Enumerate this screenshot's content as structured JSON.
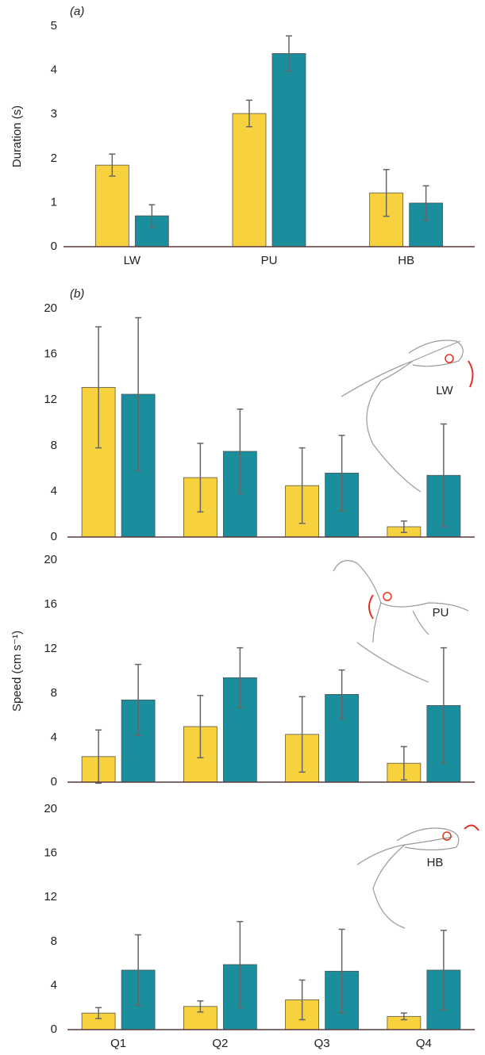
{
  "chart_data": [
    {
      "type": "bar",
      "panel_label": "(a)",
      "y_label": "Duration (s)",
      "categories": [
        "LW",
        "PU",
        "HB"
      ],
      "series": [
        {
          "color": "#f7d23e",
          "values": [
            1.85,
            3.02,
            1.22
          ],
          "errors": [
            0.25,
            0.3,
            0.53
          ]
        },
        {
          "color": "#1a8e9c",
          "values": [
            0.7,
            4.38,
            0.99
          ],
          "errors": [
            0.25,
            0.4,
            0.39
          ]
        }
      ],
      "ylim": [
        0,
        5
      ],
      "yticks": [
        0,
        1,
        2,
        3,
        4,
        5
      ]
    },
    {
      "type": "bar",
      "panel_label": "(b)",
      "annotation": "LW",
      "categories": [
        null,
        null,
        null,
        null
      ],
      "series": [
        {
          "color": "#f7d23e",
          "values": [
            13.1,
            5.2,
            4.5,
            0.9
          ],
          "errors": [
            5.3,
            3.0,
            3.3,
            0.5
          ]
        },
        {
          "color": "#1a8e9c",
          "values": [
            12.5,
            7.5,
            5.6,
            5.4
          ],
          "errors": [
            6.7,
            3.7,
            3.3,
            4.5
          ]
        }
      ],
      "ylim": [
        0,
        20
      ],
      "yticks": [
        0,
        4,
        8,
        12,
        16,
        20
      ]
    },
    {
      "type": "bar",
      "y_label": "Speed (cm s⁻¹)",
      "annotation": "PU",
      "categories": [
        null,
        null,
        null,
        null
      ],
      "series": [
        {
          "color": "#f7d23e",
          "values": [
            2.3,
            5.0,
            4.3,
            1.7
          ],
          "errors": [
            2.4,
            2.8,
            3.4,
            1.5
          ]
        },
        {
          "color": "#1a8e9c",
          "values": [
            7.4,
            9.4,
            7.9,
            6.9
          ],
          "errors": [
            3.2,
            2.7,
            2.2,
            5.2
          ]
        }
      ],
      "ylim": [
        0,
        20
      ],
      "yticks": [
        0,
        4,
        8,
        12,
        16,
        20
      ]
    },
    {
      "type": "bar",
      "annotation": "HB",
      "categories": [
        "Q1",
        "Q2",
        "Q3",
        "Q4"
      ],
      "series": [
        {
          "color": "#f7d23e",
          "values": [
            1.5,
            2.1,
            2.7,
            1.2
          ],
          "errors": [
            0.5,
            0.5,
            1.8,
            0.3
          ]
        },
        {
          "color": "#1a8e9c",
          "values": [
            5.4,
            5.9,
            5.3,
            5.4
          ],
          "errors": [
            3.2,
            3.9,
            3.8,
            3.6
          ]
        }
      ],
      "ylim": [
        0,
        20
      ],
      "yticks": [
        0,
        4,
        8,
        12,
        16,
        20
      ]
    }
  ]
}
